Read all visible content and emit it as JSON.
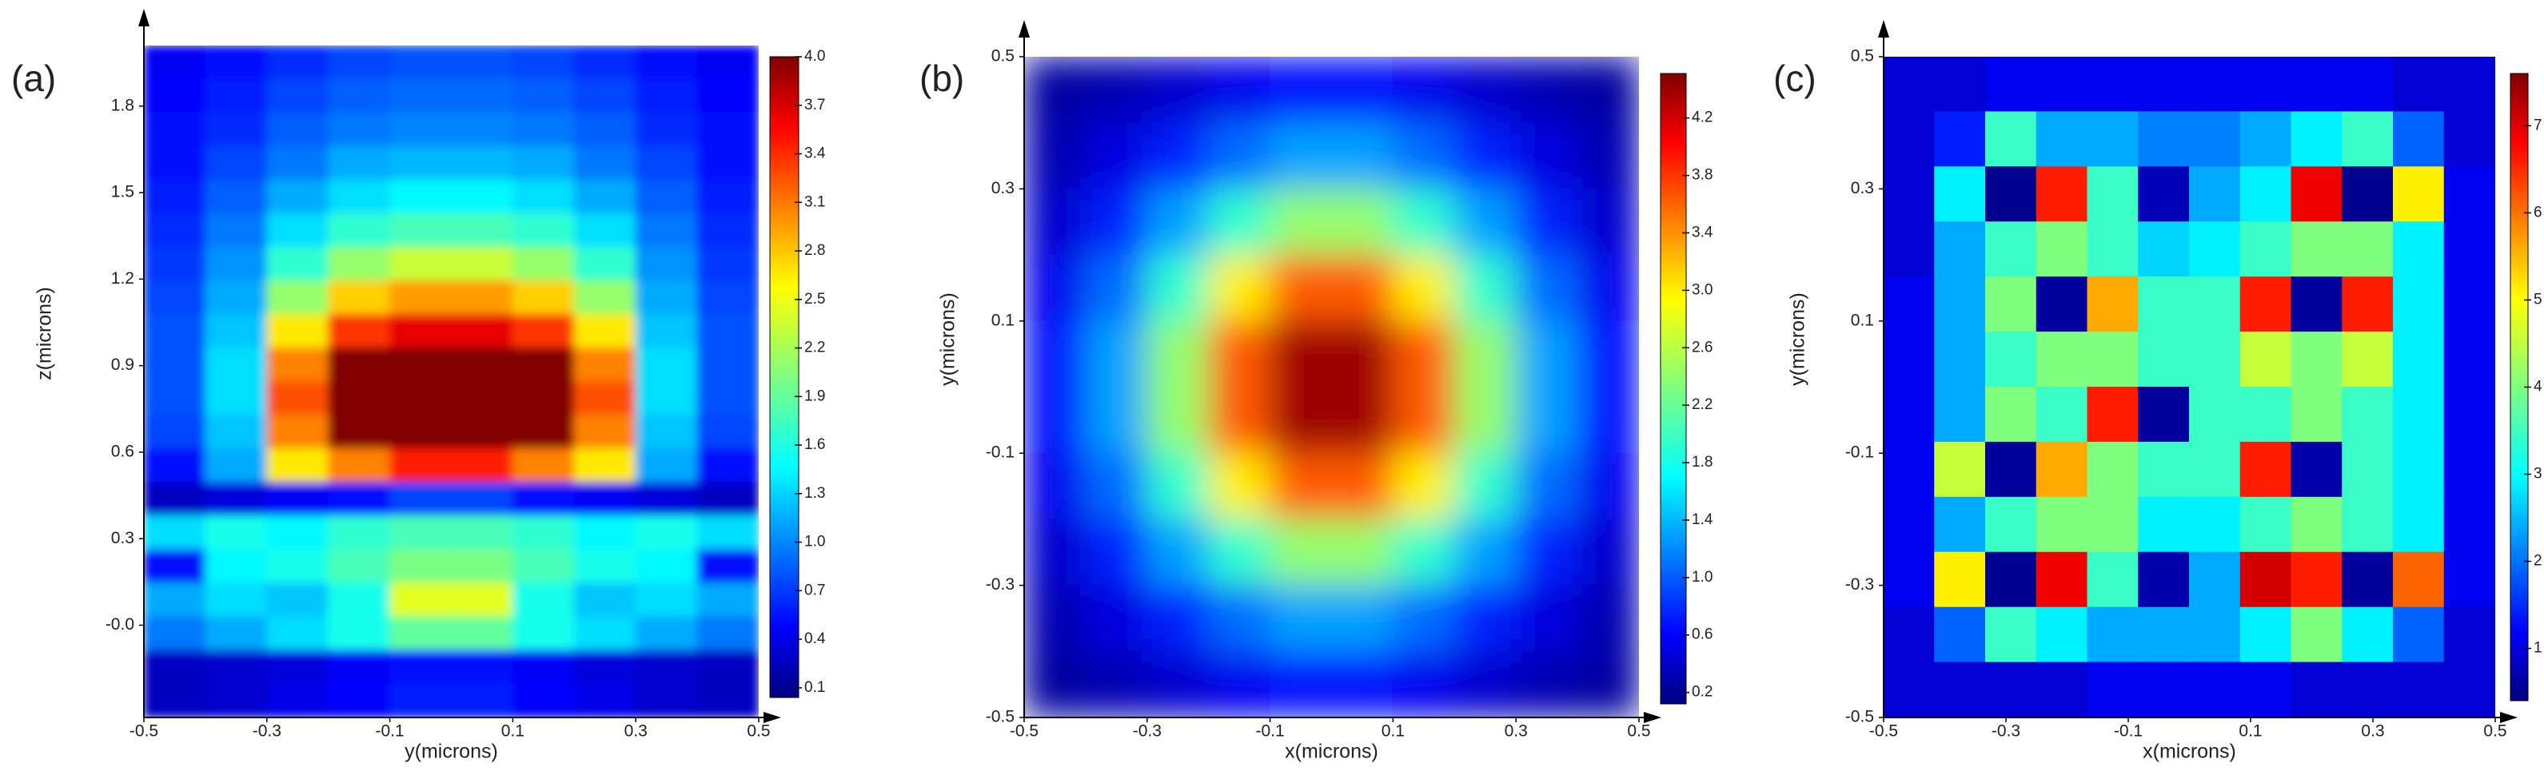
{
  "chart_data": [
    {
      "type": "heatmap",
      "title": "(a)",
      "x_label": "y(microns)",
      "y_label": "z(microns)",
      "colormap": "jet",
      "xlim": [
        -0.5,
        0.5
      ],
      "ylim": [
        -0.32,
        2.01
      ],
      "xticks": [
        -0.5,
        -0.3,
        -0.1,
        0.1,
        0.3,
        0.5
      ],
      "yticks": [
        {
          "value": 0,
          "label": "-0.0"
        },
        0.3,
        0.6,
        0.9,
        1.2,
        1.5,
        1.8
      ],
      "clim": [
        0.04,
        4.0
      ],
      "cticks": [
        0.1,
        0.4,
        0.7,
        {
          "value": 1,
          "label": "1.0"
        },
        1.3,
        1.6,
        1.9,
        2.2,
        2.5,
        2.8,
        3.1,
        3.4,
        3.7,
        {
          "value": 4,
          "label": "4.0"
        }
      ],
      "values": [
        [
          0.5,
          0.6,
          0.7,
          0.8,
          0.85,
          0.85,
          0.8,
          0.7,
          0.6,
          0.5
        ],
        [
          0.55,
          0.65,
          0.8,
          0.9,
          0.95,
          0.95,
          0.9,
          0.8,
          0.65,
          0.55
        ],
        [
          0.6,
          0.7,
          0.9,
          1.0,
          1.05,
          1.05,
          1.0,
          0.9,
          0.7,
          0.6
        ],
        [
          0.6,
          0.8,
          1.0,
          1.2,
          1.25,
          1.25,
          1.2,
          1.0,
          0.8,
          0.6
        ],
        [
          0.65,
          0.9,
          1.2,
          1.4,
          1.5,
          1.5,
          1.4,
          1.2,
          0.9,
          0.65
        ],
        [
          0.7,
          1.0,
          1.4,
          1.7,
          1.8,
          1.8,
          1.7,
          1.4,
          1.0,
          0.7
        ],
        [
          0.75,
          1.1,
          1.7,
          2.1,
          2.3,
          2.3,
          2.1,
          1.7,
          1.1,
          0.75
        ],
        [
          0.8,
          1.2,
          2.1,
          2.7,
          2.9,
          2.9,
          2.7,
          2.1,
          1.2,
          0.8
        ],
        [
          0.85,
          1.3,
          2.6,
          3.3,
          3.6,
          3.6,
          3.3,
          2.6,
          1.3,
          0.85
        ],
        [
          0.85,
          1.4,
          3.0,
          4.0,
          4.0,
          4.0,
          4.0,
          3.0,
          1.4,
          0.85
        ],
        [
          0.85,
          1.4,
          3.2,
          4.0,
          4.0,
          4.0,
          4.0,
          3.2,
          1.4,
          0.85
        ],
        [
          0.8,
          1.3,
          3.0,
          4.0,
          4.0,
          4.0,
          4.0,
          3.0,
          1.3,
          0.8
        ],
        [
          0.6,
          1.2,
          2.6,
          3.0,
          3.4,
          3.4,
          3.0,
          2.6,
          1.2,
          0.6
        ],
        [
          0.3,
          0.4,
          0.5,
          0.6,
          0.8,
          0.8,
          0.6,
          0.5,
          0.4,
          0.3
        ],
        [
          1.4,
          1.6,
          1.5,
          1.7,
          1.8,
          1.8,
          1.7,
          1.5,
          1.6,
          1.4
        ],
        [
          0.6,
          1.5,
          1.6,
          1.8,
          2.0,
          2.0,
          1.8,
          1.6,
          1.5,
          0.6
        ],
        [
          1.2,
          1.4,
          1.3,
          1.6,
          2.4,
          2.4,
          1.6,
          1.3,
          1.4,
          1.2
        ],
        [
          1.0,
          1.2,
          1.4,
          1.6,
          1.9,
          1.9,
          1.6,
          1.4,
          1.2,
          1.0
        ],
        [
          0.3,
          0.35,
          0.4,
          0.5,
          0.6,
          0.6,
          0.5,
          0.4,
          0.35,
          0.3
        ],
        [
          0.3,
          0.35,
          0.45,
          0.55,
          0.65,
          0.65,
          0.55,
          0.45,
          0.35,
          0.3
        ]
      ]
    },
    {
      "type": "heatmap",
      "title": "(b)",
      "x_label": "x(microns)",
      "y_label": "y(microns)",
      "colormap": "jet",
      "xlim": [
        -0.5,
        0.5
      ],
      "ylim": [
        -0.5,
        0.5
      ],
      "xticks": [
        -0.5,
        -0.3,
        -0.1,
        0.1,
        0.3,
        0.5
      ],
      "yticks": [
        -0.5,
        -0.3,
        -0.1,
        0.1,
        0.3,
        0.5
      ],
      "clim": [
        0.12,
        4.51
      ],
      "cticks": [
        0.2,
        0.6,
        {
          "value": 1,
          "label": "1.0"
        },
        1.4,
        1.8,
        2.2,
        2.6,
        {
          "value": 3,
          "label": "3.0"
        },
        3.4,
        3.8,
        4.2
      ],
      "values": [
        [
          0.26,
          0.34,
          0.46,
          0.6,
          0.7,
          0.7,
          0.6,
          0.46,
          0.34,
          0.26
        ],
        [
          0.34,
          0.53,
          0.82,
          1.14,
          1.37,
          1.37,
          1.14,
          0.82,
          0.53,
          0.34
        ],
        [
          0.46,
          0.82,
          1.36,
          1.98,
          2.4,
          2.4,
          1.98,
          1.36,
          0.82,
          0.46
        ],
        [
          0.6,
          1.14,
          1.98,
          2.93,
          3.57,
          3.57,
          2.93,
          1.98,
          1.14,
          0.6
        ],
        [
          0.7,
          1.37,
          2.4,
          3.57,
          4.38,
          4.38,
          3.57,
          2.4,
          1.37,
          0.7
        ],
        [
          0.7,
          1.37,
          2.4,
          3.57,
          4.38,
          4.38,
          3.57,
          2.4,
          1.37,
          0.7
        ],
        [
          0.6,
          1.14,
          1.98,
          2.93,
          3.57,
          3.57,
          2.93,
          1.98,
          1.14,
          0.6
        ],
        [
          0.46,
          0.82,
          1.36,
          1.98,
          2.4,
          2.4,
          1.98,
          1.36,
          0.82,
          0.46
        ],
        [
          0.34,
          0.53,
          0.82,
          1.14,
          1.37,
          1.37,
          1.14,
          0.82,
          0.53,
          0.34
        ],
        [
          0.26,
          0.34,
          0.46,
          0.6,
          0.7,
          0.7,
          0.6,
          0.46,
          0.34,
          0.26
        ]
      ]
    },
    {
      "type": "heatmap",
      "title": "(c)",
      "x_label": "x(microns)",
      "y_label": "y(microns)",
      "colormap": "jet",
      "xlim": [
        -0.5,
        0.5
      ],
      "ylim": [
        -0.5,
        0.5
      ],
      "xticks": [
        -0.5,
        -0.3,
        -0.1,
        0.1,
        0.3,
        0.5
      ],
      "yticks": [
        -0.5,
        -0.3,
        -0.1,
        0.1,
        0.3,
        0.5
      ],
      "clim": [
        0.4,
        7.6
      ],
      "cticks": [
        1,
        2,
        3,
        4,
        5,
        6,
        7
      ],
      "values": [
        [
          1,
          1,
          1.2,
          1.2,
          1.2,
          1.2,
          1.2,
          1.2,
          1.2,
          1.2,
          1,
          1
        ],
        [
          1,
          1.5,
          3.5,
          2.5,
          2.5,
          2.2,
          2.2,
          2.5,
          3,
          3.5,
          2,
          1
        ],
        [
          1,
          3,
          0.5,
          6.5,
          3.5,
          0.8,
          2.5,
          3,
          6.8,
          0.5,
          5,
          1.2
        ],
        [
          1,
          2.5,
          3.5,
          4,
          3.5,
          2.8,
          3,
          3.5,
          4,
          4,
          3,
          1.2
        ],
        [
          1.2,
          2.5,
          4,
          0.6,
          5.5,
          3.5,
          3.5,
          6.5,
          0.6,
          6.5,
          3,
          1.2
        ],
        [
          1.2,
          2.5,
          3.5,
          4,
          4,
          3.5,
          3.5,
          4.5,
          4,
          4.5,
          3,
          1.2
        ],
        [
          1.2,
          2.5,
          4,
          3.5,
          6.5,
          0.6,
          3.5,
          3.5,
          4,
          3.5,
          3,
          1.2
        ],
        [
          1.2,
          4.5,
          0.6,
          5.5,
          4,
          3.5,
          3.5,
          6.5,
          0.7,
          3.5,
          3,
          1.2
        ],
        [
          1.2,
          2.5,
          3.5,
          4,
          4,
          3,
          3,
          3.5,
          4,
          3.5,
          3,
          1.2
        ],
        [
          1.2,
          5,
          0.5,
          6.8,
          3.5,
          0.7,
          2.5,
          7,
          6.5,
          0.6,
          6,
          1.2
        ],
        [
          1,
          2,
          3.5,
          3,
          2.5,
          2.5,
          2.5,
          3,
          4,
          3,
          2,
          1
        ],
        [
          1,
          1,
          1,
          1,
          1.2,
          1.2,
          1.2,
          1.2,
          1,
          1,
          1,
          1
        ]
      ]
    }
  ]
}
